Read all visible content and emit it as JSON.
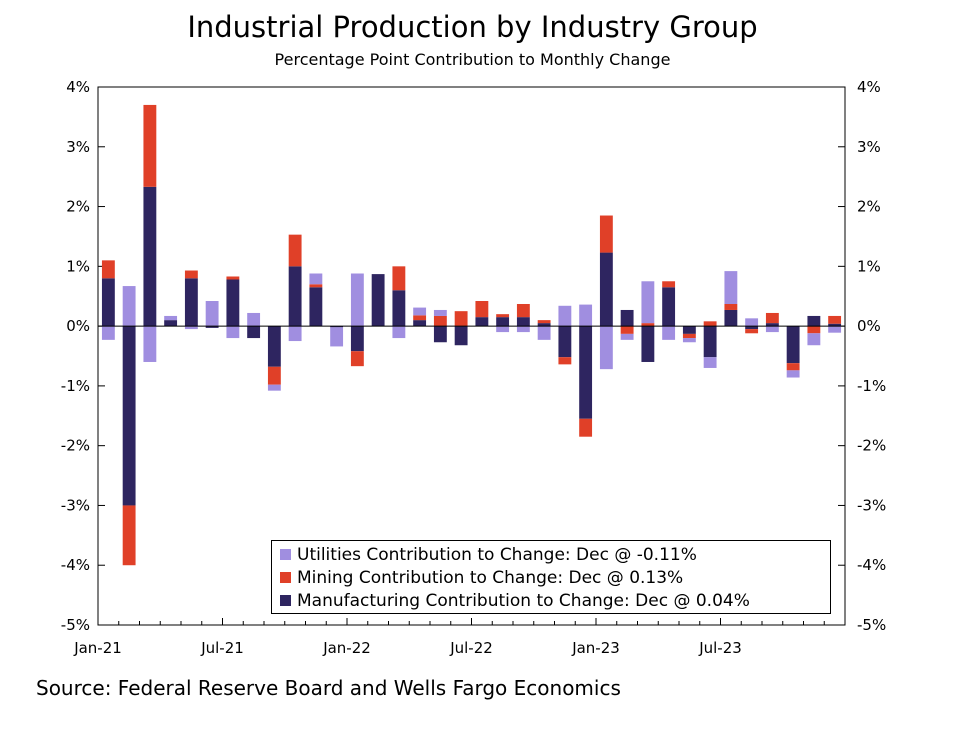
{
  "title": "Industrial Production by Industry Group",
  "subtitle": "Percentage Point Contribution to Monthly Change",
  "source": "Source: Federal Reserve Board and Wells Fargo Economics",
  "colors": {
    "utilities": "#a08ee0",
    "mining": "#e04028",
    "manufacturing": "#2e2560"
  },
  "chart_data": {
    "type": "bar",
    "stacked": true,
    "x_tick_labels": [
      "Jan-21",
      "Jul-21",
      "Jan-22",
      "Jul-22",
      "Jan-23",
      "Jul-23"
    ],
    "y_tick_labels": [
      "4%",
      "3%",
      "2%",
      "1%",
      "0%",
      "-1%",
      "-2%",
      "-3%",
      "-4%",
      "-5%"
    ],
    "ylim": [
      -5,
      4
    ],
    "y_axis_both_sides": true,
    "grid": false,
    "legend_position": "bottom-right",
    "categories": [
      "Jan-21",
      "Feb-21",
      "Mar-21",
      "Apr-21",
      "May-21",
      "Jun-21",
      "Jul-21",
      "Aug-21",
      "Sep-21",
      "Oct-21",
      "Nov-21",
      "Dec-21",
      "Jan-22",
      "Feb-22",
      "Mar-22",
      "Apr-22",
      "May-22",
      "Jun-22",
      "Jul-22",
      "Aug-22",
      "Sep-22",
      "Oct-22",
      "Nov-22",
      "Dec-22",
      "Jan-23",
      "Feb-23",
      "Mar-23",
      "Apr-23",
      "May-23",
      "Jun-23",
      "Jul-23",
      "Aug-23",
      "Sep-23",
      "Oct-23",
      "Nov-23",
      "Dec-23"
    ],
    "series": [
      {
        "name": "Manufacturing Contribution to Change: Dec @ 0.04%",
        "key": "manufacturing",
        "values": [
          0.8,
          -3.0,
          2.33,
          0.1,
          0.8,
          -0.03,
          0.78,
          -0.2,
          -0.68,
          1.0,
          0.65,
          -0.02,
          -0.42,
          0.87,
          0.6,
          0.1,
          -0.27,
          -0.32,
          0.15,
          0.15,
          0.15,
          0.05,
          -0.52,
          -1.55,
          1.23,
          0.27,
          -0.6,
          0.65,
          -0.13,
          -0.52,
          0.27,
          -0.05,
          0.05,
          -0.62,
          0.17,
          0.04
        ]
      },
      {
        "name": "Mining Contribution to Change: Dec @ 0.13%",
        "key": "mining",
        "values": [
          0.3,
          -1.0,
          1.37,
          0.0,
          0.13,
          0.0,
          0.05,
          0.0,
          -0.3,
          0.53,
          0.05,
          0.0,
          -0.25,
          0.0,
          0.4,
          0.08,
          0.17,
          0.25,
          0.27,
          0.05,
          0.22,
          0.05,
          -0.12,
          -0.3,
          0.62,
          -0.13,
          0.05,
          0.1,
          -0.07,
          0.08,
          0.1,
          -0.07,
          0.17,
          -0.12,
          -0.12,
          0.13
        ]
      },
      {
        "name": "Utilities Contribution to Change: Dec @ -0.11%",
        "key": "utilities",
        "values": [
          -0.23,
          0.67,
          -0.6,
          0.07,
          -0.05,
          0.42,
          -0.2,
          0.22,
          -0.1,
          -0.25,
          0.18,
          -0.32,
          0.88,
          0.0,
          -0.2,
          0.13,
          0.1,
          0.0,
          0.0,
          -0.1,
          -0.1,
          -0.23,
          0.34,
          0.36,
          -0.72,
          -0.1,
          0.7,
          -0.23,
          -0.07,
          -0.18,
          0.55,
          0.13,
          -0.1,
          -0.12,
          -0.2,
          -0.11
        ]
      }
    ]
  }
}
